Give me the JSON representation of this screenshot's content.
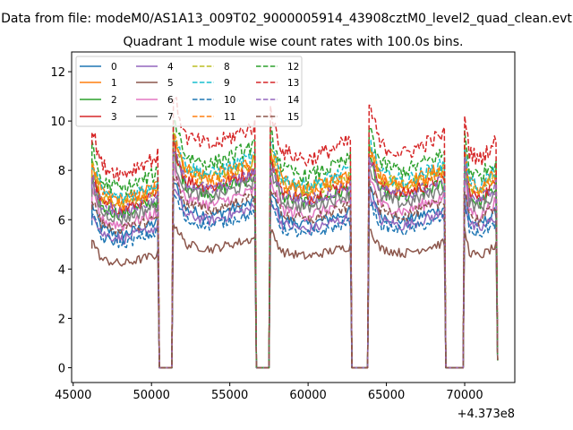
{
  "figure": {
    "suptitle": "Data from file: modeM0/AS1A13_009T02_9000005914_43908cztM0_level2_quad_clean.evt",
    "title": "Quadrant 1 module wise count rates with 100.0s bins.",
    "offset_text": "+4.373e8"
  },
  "chart_data": {
    "type": "line",
    "title": "Quadrant 1 module wise count rates with 100.0s bins.",
    "xlabel": "",
    "ylabel": "",
    "xlim": [
      44900,
      73200
    ],
    "ylim": [
      -0.6,
      12.8
    ],
    "x_ticks": [
      45000,
      50000,
      55000,
      60000,
      65000,
      70000
    ],
    "y_ticks": [
      0,
      2,
      4,
      6,
      8,
      10,
      12
    ],
    "x_offset": "+4.373e8",
    "grid": false,
    "legend": {
      "placement": "upper-left",
      "columns": 4
    },
    "gaps": [
      [
        50500,
        51300
      ],
      [
        56700,
        57500
      ],
      [
        62800,
        63800
      ],
      [
        68800,
        69900
      ]
    ],
    "active_segments": [
      [
        46200,
        50400
      ],
      [
        51400,
        56600
      ],
      [
        57600,
        62700
      ],
      [
        63900,
        68700
      ],
      [
        70000,
        72000
      ]
    ],
    "series": [
      {
        "name": "0",
        "color": "#1f77b4",
        "dash": "solid",
        "level": 5.9
      },
      {
        "name": "1",
        "color": "#ff7f0e",
        "dash": "solid",
        "level": 7.4
      },
      {
        "name": "2",
        "color": "#2ca02c",
        "dash": "solid",
        "level": 6.8
      },
      {
        "name": "3",
        "color": "#d62728",
        "dash": "solid",
        "level": 7.0
      },
      {
        "name": "4",
        "color": "#9467bd",
        "dash": "solid",
        "level": 5.7
      },
      {
        "name": "5",
        "color": "#8c564b",
        "dash": "solid",
        "level": 4.6
      },
      {
        "name": "6",
        "color": "#e377c2",
        "dash": "solid",
        "level": 6.3
      },
      {
        "name": "7",
        "color": "#7f7f7f",
        "dash": "solid",
        "level": 6.6
      },
      {
        "name": "8",
        "color": "#bcbd22",
        "dash": "dashed",
        "level": 7.3
      },
      {
        "name": "9",
        "color": "#17becf",
        "dash": "dashed",
        "level": 7.5
      },
      {
        "name": "10",
        "color": "#1f77b4",
        "dash": "dashed",
        "level": 5.5
      },
      {
        "name": "11",
        "color": "#ff7f0e",
        "dash": "dashed",
        "level": 7.2
      },
      {
        "name": "12",
        "color": "#2ca02c",
        "dash": "dashed",
        "level": 7.9
      },
      {
        "name": "13",
        "color": "#d62728",
        "dash": "dashed",
        "level": 8.6
      },
      {
        "name": "14",
        "color": "#9467bd",
        "dash": "dashed",
        "level": 6.9
      },
      {
        "name": "15",
        "color": "#8c564b",
        "dash": "dashed",
        "level": 6.1
      }
    ]
  }
}
